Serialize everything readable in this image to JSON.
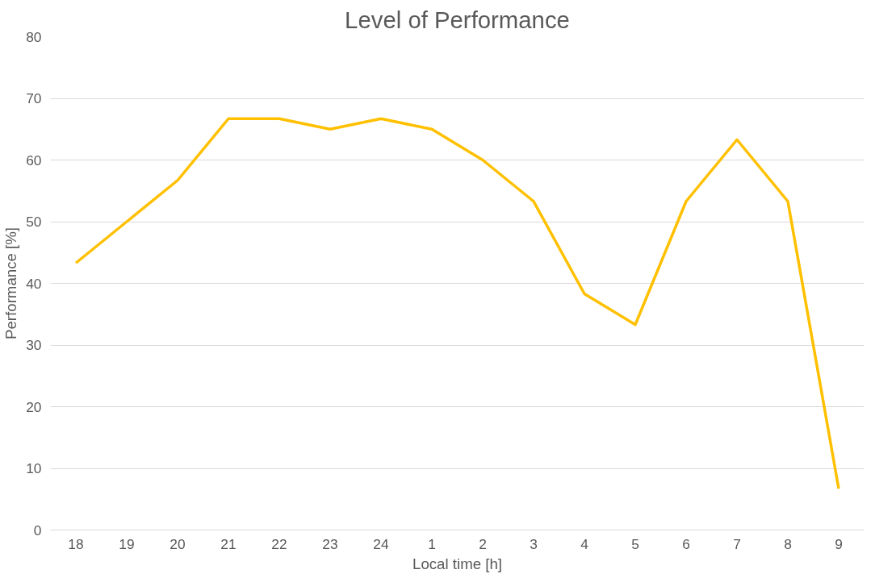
{
  "chart_data": {
    "type": "line",
    "title": "Level of Performance",
    "xlabel": "Local time [h]",
    "ylabel": "Performance [%]",
    "categories": [
      "18",
      "19",
      "20",
      "21",
      "22",
      "23",
      "24",
      "1",
      "2",
      "3",
      "4",
      "5",
      "6",
      "7",
      "8",
      "9"
    ],
    "series": [
      {
        "color": "#ffc000",
        "values": [
          43.3,
          50,
          56.7,
          66.7,
          66.7,
          65,
          66.7,
          65,
          60,
          53.3,
          38.3,
          33.3,
          53.3,
          63.3,
          53.3,
          6.7
        ]
      }
    ],
    "ylim": [
      0,
      80
    ],
    "yticks": [
      0,
      10,
      20,
      30,
      40,
      50,
      60,
      70,
      80
    ],
    "grid": "y",
    "marker": "none",
    "line_style": "solid"
  }
}
